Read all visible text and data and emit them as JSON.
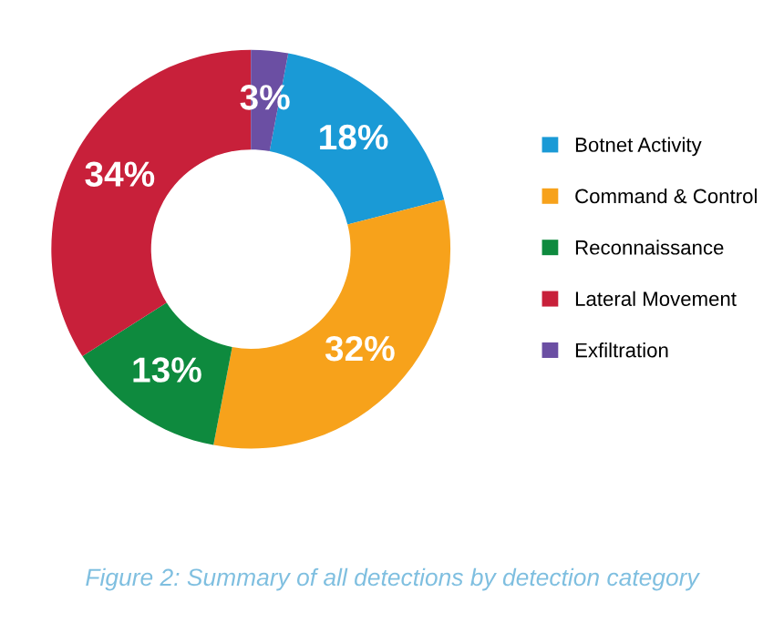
{
  "chart_data": {
    "type": "donut",
    "categories": [
      "Botnet Activity",
      "Command & Control",
      "Reconnaissance",
      "Lateral Movement",
      "Exfiltration"
    ],
    "values": [
      18,
      32,
      13,
      34,
      3
    ],
    "colors": [
      "#1a9ad6",
      "#f7a21b",
      "#0e8a3e",
      "#c8203a",
      "#6b4fa3"
    ],
    "value_labels": [
      "18%",
      "32%",
      "13%",
      "34%",
      "3%"
    ],
    "legend": "right",
    "annotations": [
      "Figure 2: Summary of all detections by detection category"
    ]
  }
}
